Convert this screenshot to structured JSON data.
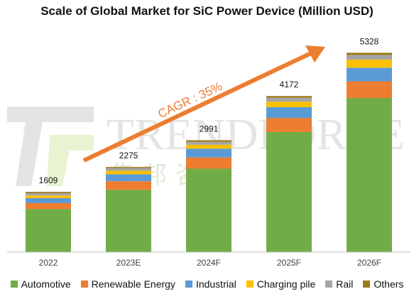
{
  "chart_data": {
    "type": "bar",
    "stacked": true,
    "title": "Scale of Global Market for SiC Power Device (Million USD)",
    "categories": [
      "2022",
      "2023E",
      "2024F",
      "2025F",
      "2026F"
    ],
    "totals": [
      1609,
      2275,
      2991,
      4172,
      5328
    ],
    "series": [
      {
        "name": "Automotive",
        "color": "#70ad47",
        "values": [
          1150,
          1665,
          2230,
          3210,
          4120
        ]
      },
      {
        "name": "Renewable Energy",
        "color": "#ed7d31",
        "values": [
          160,
          230,
          300,
          375,
          445
        ]
      },
      {
        "name": "Industrial",
        "color": "#5b9bd5",
        "values": [
          135,
          185,
          235,
          290,
          365
        ]
      },
      {
        "name": "Charging pile",
        "color": "#ffc000",
        "values": [
          70,
          95,
          105,
          145,
          215
        ]
      },
      {
        "name": "Rail",
        "color": "#a5a5a5",
        "values": [
          60,
          70,
          80,
          105,
          125
        ]
      },
      {
        "name": "Others",
        "color": "#9c7a1b",
        "values": [
          34,
          30,
          41,
          47,
          58
        ]
      }
    ],
    "annotation": "CAGR : 35%",
    "annotation_color": "#ed7d31",
    "ylim": [
      0,
      5600
    ],
    "grid": false,
    "legend_position": "bottom",
    "watermark": {
      "text": "TRENDFORCE",
      "subtext": "集邦咨询"
    }
  }
}
